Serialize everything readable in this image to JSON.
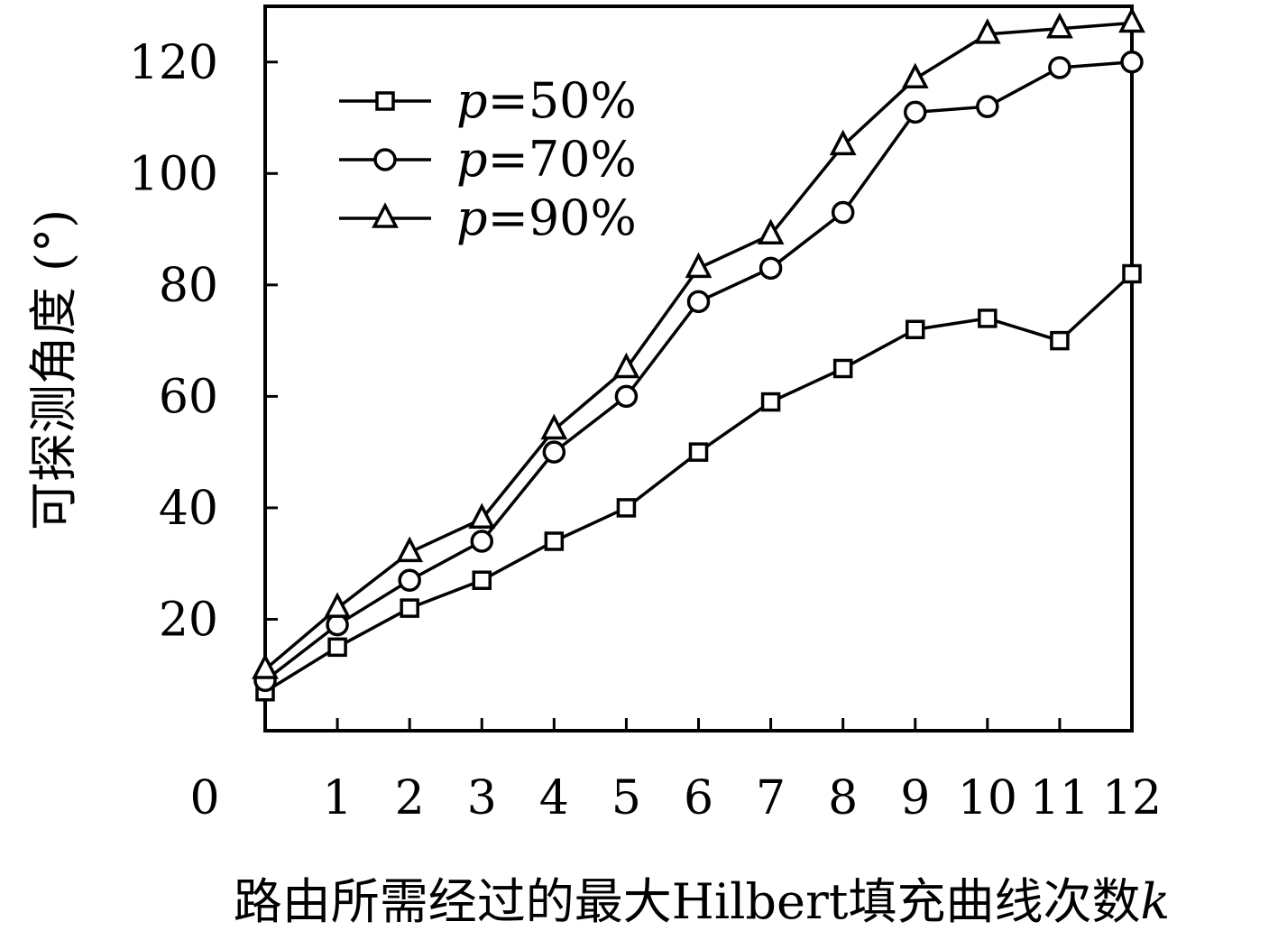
{
  "chart_data": {
    "type": "line",
    "title": "",
    "xlabel": "路由所需经过的最大Hilbert填充曲线次数",
    "xlabel_var": "k",
    "ylabel": "可探测角度 (°)",
    "x": [
      0,
      1,
      2,
      3,
      4,
      5,
      6,
      7,
      8,
      9,
      10,
      11,
      12
    ],
    "xticks": [
      1,
      2,
      3,
      4,
      5,
      6,
      7,
      8,
      9,
      10,
      11,
      12
    ],
    "origin_label": "0",
    "yticks": [
      20,
      40,
      60,
      80,
      100,
      120
    ],
    "xlim": [
      0,
      12
    ],
    "ylim": [
      0,
      130
    ],
    "grid": false,
    "legend_position": "top-left",
    "series": [
      {
        "name": "p=50%",
        "legend_var": "p",
        "legend_rest": "=50%",
        "marker": "square",
        "values": [
          7,
          15,
          22,
          27,
          34,
          40,
          50,
          59,
          65,
          72,
          74,
          70,
          82
        ]
      },
      {
        "name": "p=70%",
        "legend_var": "p",
        "legend_rest": "=70%",
        "marker": "circle",
        "values": [
          9,
          19,
          27,
          34,
          50,
          60,
          77,
          83,
          93,
          111,
          112,
          119,
          120
        ]
      },
      {
        "name": "p=90%",
        "legend_var": "p",
        "legend_rest": "=90%",
        "marker": "triangle",
        "values": [
          11,
          22,
          32,
          38,
          54,
          65,
          83,
          89,
          105,
          117,
          125,
          126,
          127
        ]
      }
    ]
  }
}
